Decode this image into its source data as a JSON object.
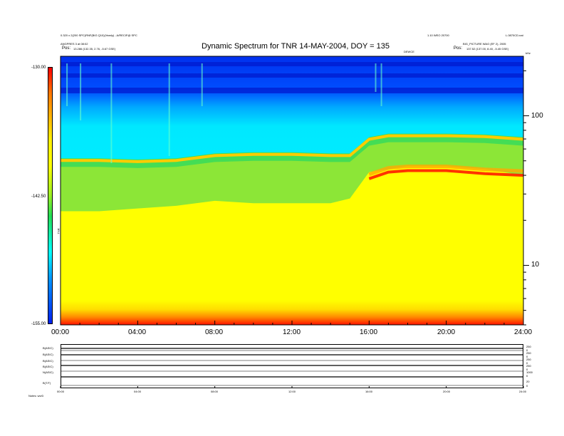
{
  "header": {
    "title": "Dynamic Spectrum for TNR 14-MAY-2004, DOY = 135",
    "left_line1": "0.320 x 2(200 SPC)RNF(BIG Q10)(Yearly) - A/RECIF@ SPC",
    "left_line2": "ANGPRES 3 at 08:02",
    "left_line3_label": "Pos:",
    "left_line3_value": "13.286 (132.35, 2.76, -5.67 GSE)",
    "right_line1": "1.10 WEO 20700",
    "right_line1b": "L.0870CD.nat",
    "right_line2": "BIG_PICTURE WAO (EF 2), 2005",
    "right_line3_label": "Pos:",
    "right_line3_value": "137.52 (137.00, 8.40, -5.45 GSE)",
    "center_small": "DEWCE",
    "right_unit": "kHz"
  },
  "colorbar": {
    "top_label": "-130.00",
    "mid_label": "-142.50",
    "bottom_label": "-155.00",
    "axis_label": "TNR"
  },
  "axes": {
    "x_ticks": [
      "00:00",
      "04:00",
      "08:00",
      "12:00",
      "16:00",
      "20:00",
      "24:00"
    ],
    "y_ticks": [
      "100",
      "10"
    ]
  },
  "lower_panel": {
    "labels": [
      "B(ASIC)",
      "B(ASIC)",
      "B(ASIC)",
      "B(ASIC)",
      "N(ASIC)",
      "B(T/T)"
    ],
    "right_labels": [
      "250",
      "0",
      "250",
      "0",
      "250",
      "0",
      "250",
      "0",
      "1000",
      "0",
      "20",
      "0"
    ],
    "x_ticks": [
      "00:00",
      "04:00",
      "08:00",
      "12:00",
      "16:00",
      "20:00",
      "24:00"
    ],
    "footer": "Notes:  wvt3"
  },
  "chart_data": {
    "type": "heatmap",
    "title": "Dynamic Spectrum for TNR 14-MAY-2004, DOY = 135",
    "xlabel": "",
    "ylabel": "kHz",
    "x_range": [
      "00:00",
      "24:00"
    ],
    "y_scale": "log",
    "y_range_khz": [
      4,
      250
    ],
    "color_scale": {
      "label": "TNR",
      "min": -155.0,
      "max": -130.0,
      "mid": -142.5
    },
    "colormap": [
      "#0022ee",
      "#0099ff",
      "#00ffff",
      "#22dd55",
      "#99ee22",
      "#ffff00",
      "#ffee00",
      "#ff7700",
      "#ff0000"
    ],
    "band_edges": {
      "x_hours": [
        0,
        2,
        4,
        6,
        8,
        10,
        12,
        14,
        15,
        16,
        17,
        18,
        20,
        22,
        24
      ],
      "cyan_lower_edge_khz": [
        52,
        52,
        51,
        52,
        56,
        57,
        57,
        56,
        56,
        72,
        76,
        76,
        76,
        75,
        72
      ],
      "red_line_khz": [
        null,
        null,
        null,
        null,
        null,
        null,
        null,
        null,
        null,
        38,
        42,
        43,
        43,
        41,
        40
      ],
      "green_lower_edge_khz": [
        23,
        23,
        24,
        25,
        27,
        26,
        26,
        26,
        28,
        42,
        44,
        46,
        46,
        44,
        40
      ]
    }
  }
}
